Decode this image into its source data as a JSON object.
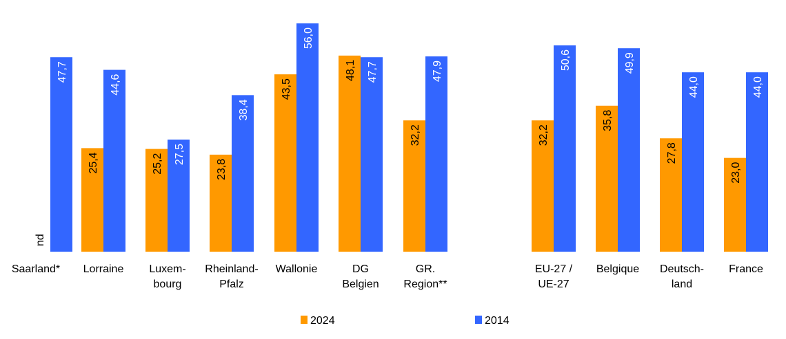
{
  "chart_data": {
    "type": "bar",
    "title": "",
    "xlabel": "",
    "ylabel": "",
    "ylim": [
      0,
      56
    ],
    "grid": false,
    "legend_position": "bottom",
    "categories": [
      [
        "Saarland*"
      ],
      [
        "Lorraine"
      ],
      [
        "Luxem-",
        "bourg"
      ],
      [
        "Rheinland-",
        "Pfalz"
      ],
      [
        "Wallonie"
      ],
      [
        "DG",
        "Belgien"
      ],
      [
        "GR.",
        "Region**"
      ],
      [
        "EU-27 /",
        "UE-27"
      ],
      [
        "Belgique"
      ],
      [
        "Deutsch-",
        "land"
      ],
      [
        "France"
      ]
    ],
    "series": [
      {
        "name": "2024",
        "color": "#ff9900",
        "label_color": "#000000",
        "values": [
          null,
          25.4,
          25.2,
          23.8,
          43.5,
          48.1,
          32.2,
          32.2,
          35.8,
          27.8,
          23.0
        ],
        "labels": [
          "nd",
          "25,4",
          "25,2",
          "23,8",
          "43,5",
          "48,1",
          "32,2",
          "32,2",
          "35,8",
          "27,8",
          "23,0"
        ]
      },
      {
        "name": "2014",
        "color": "#3366ff",
        "label_color": "#ffffff",
        "values": [
          47.7,
          44.6,
          27.5,
          38.4,
          56.0,
          47.7,
          47.9,
          50.6,
          49.9,
          44.0,
          44.0
        ],
        "labels": [
          "47,7",
          "44,6",
          "27,5",
          "38,4",
          "56,0",
          "47,7",
          "47,9",
          "50,6",
          "49,9",
          "44,0",
          "44,0"
        ]
      }
    ]
  }
}
